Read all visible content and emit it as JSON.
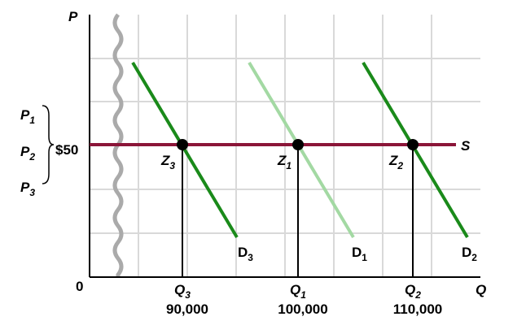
{
  "axis_labels": {
    "y": "P",
    "x": "Q",
    "origin": "0"
  },
  "price_label": "$50",
  "price_levels": [
    {
      "main": "P",
      "sub": "1"
    },
    {
      "main": "P",
      "sub": "2"
    },
    {
      "main": "P",
      "sub": "3"
    }
  ],
  "supply_label": "S",
  "points": [
    {
      "main": "Z",
      "sub": "3"
    },
    {
      "main": "Z",
      "sub": "1"
    },
    {
      "main": "Z",
      "sub": "2"
    }
  ],
  "demand_curves": [
    {
      "main": "D",
      "sub": "3"
    },
    {
      "main": "D",
      "sub": "1"
    },
    {
      "main": "D",
      "sub": "2"
    }
  ],
  "quantities": [
    {
      "main": "Q",
      "sub": "3",
      "value": "90,000"
    },
    {
      "main": "Q",
      "sub": "1",
      "value": "100,000"
    },
    {
      "main": "Q",
      "sub": "2",
      "value": "110,000"
    }
  ]
}
